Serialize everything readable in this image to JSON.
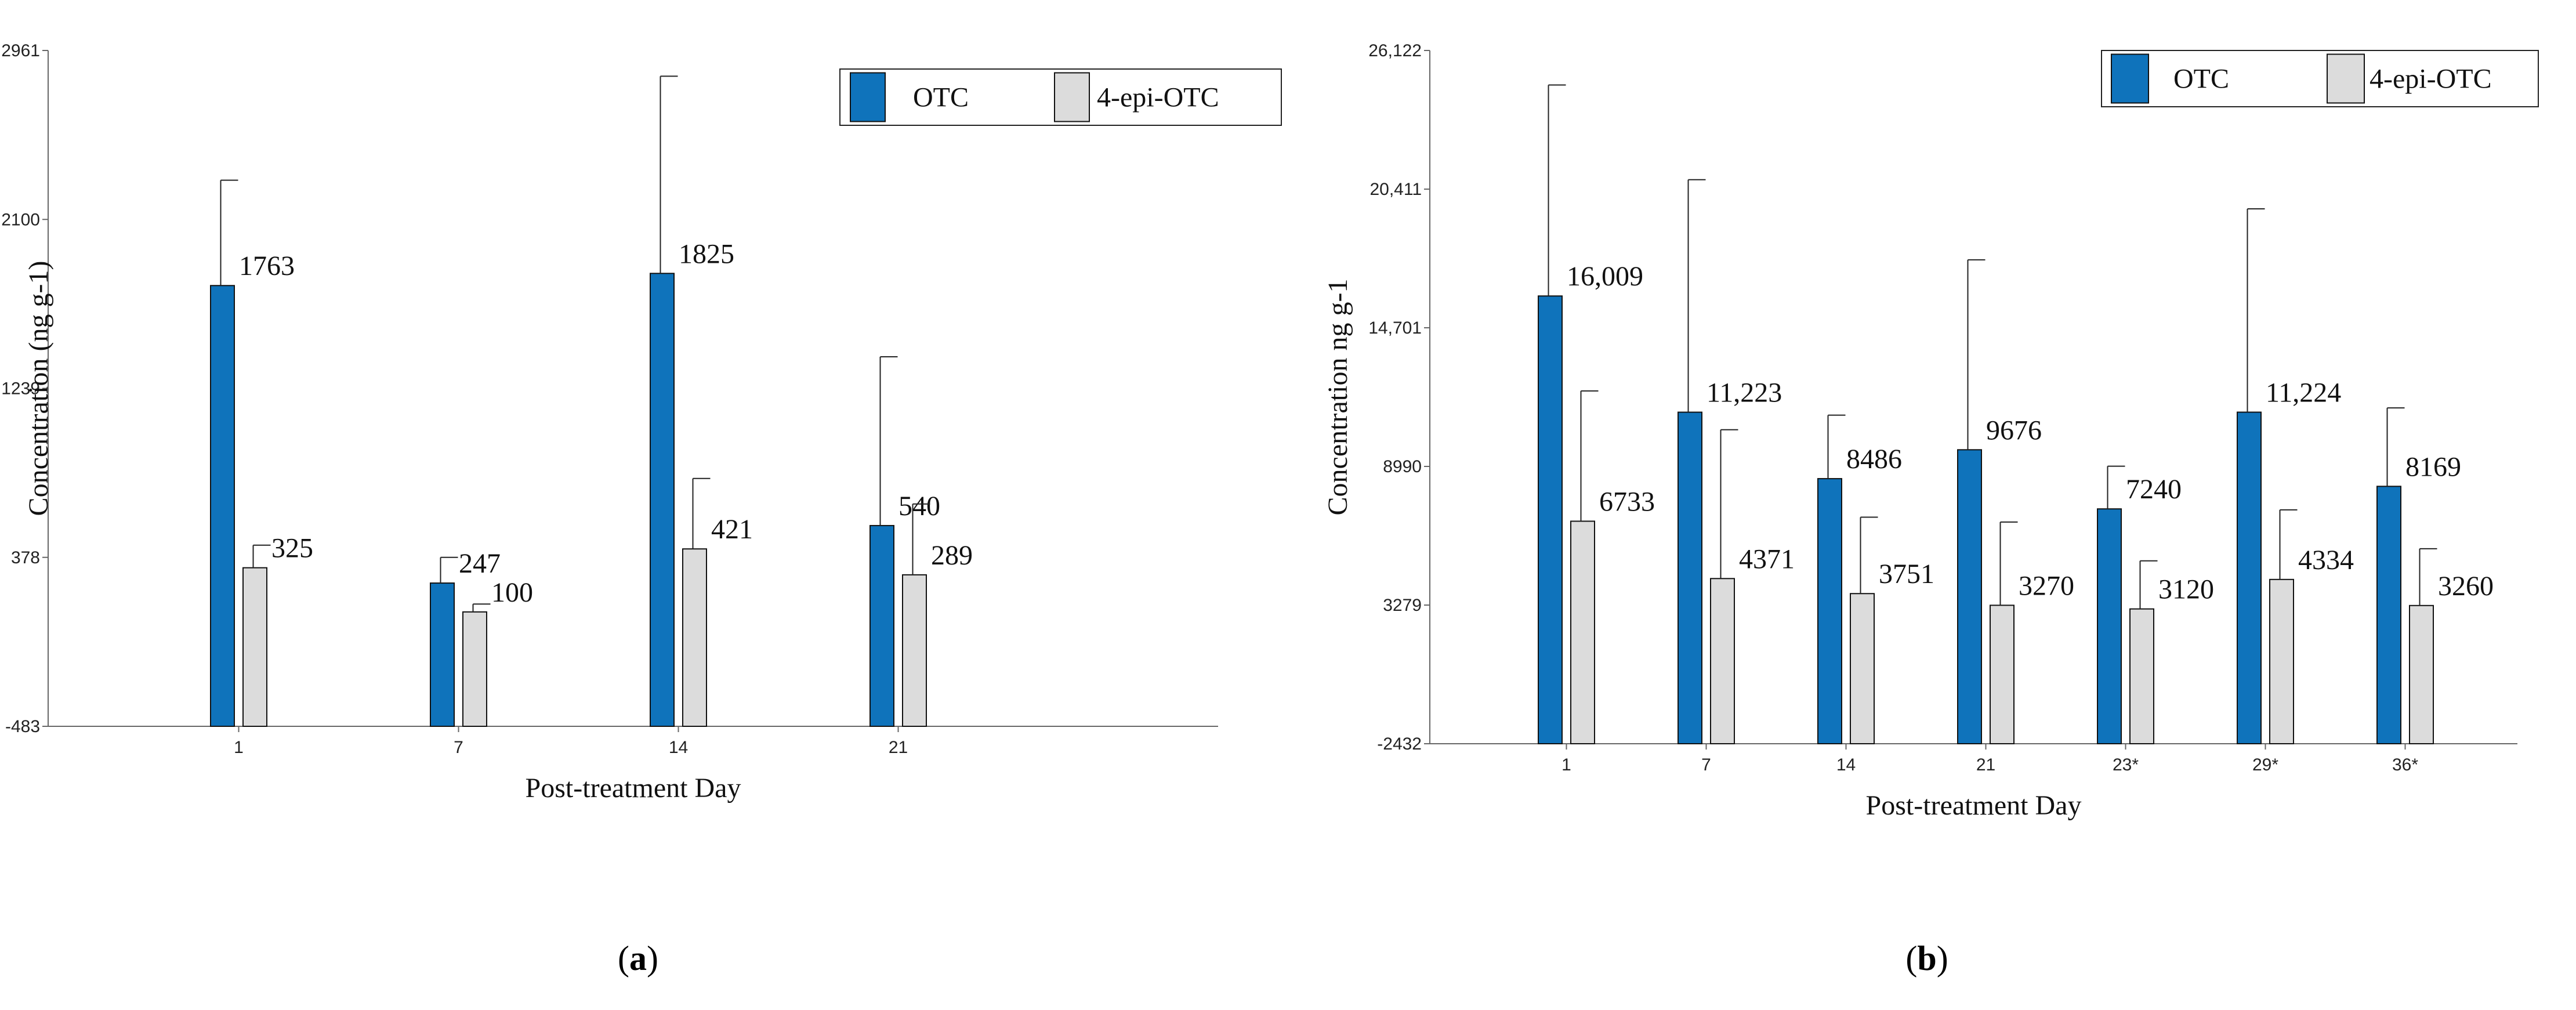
{
  "chart_data": [
    {
      "type": "bar",
      "panel_label": "a",
      "xlabel": "Post-treatment Day",
      "ylabel": "Concentration (ng g-1)",
      "ylim": [
        -483,
        2961
      ],
      "yticks": [
        "-483",
        "378",
        "1239",
        "2100",
        "2961"
      ],
      "categories": [
        "1",
        "7",
        "14",
        "21"
      ],
      "legend_position": "top-right",
      "series": [
        {
          "name": "OTC",
          "color": "#0f73bb",
          "values": [
            1763,
            247,
            1825,
            540
          ],
          "labels": [
            "1763",
            "247",
            "1825",
            "540"
          ],
          "error_upper": [
            2300,
            378,
            2830,
            1400
          ]
        },
        {
          "name": "4-epi-OTC",
          "color": "#dcdcdc",
          "values": [
            325,
            100,
            421,
            289
          ],
          "labels": [
            "325",
            "100",
            "421",
            "289"
          ],
          "error_upper": [
            440,
            140,
            780,
            650
          ]
        }
      ]
    },
    {
      "type": "bar",
      "panel_label": "b",
      "xlabel": "Post-treatment Day",
      "ylabel": "Concentration ng g-1",
      "ylim": [
        -2432,
        26122
      ],
      "yticks": [
        "-2432",
        "3279",
        "8990",
        "14,701",
        "20,411",
        "26,122"
      ],
      "categories": [
        "1",
        "7",
        "14",
        "21",
        "23*",
        "29*",
        "36*"
      ],
      "legend_position": "top-right",
      "series": [
        {
          "name": "OTC",
          "color": "#0f73bb",
          "values": [
            16009,
            11223,
            8486,
            9676,
            7240,
            11224,
            8169
          ],
          "labels": [
            "16,009",
            "11,223",
            "8486",
            "9676",
            "7240",
            "11,224",
            "8169"
          ],
          "error_upper": [
            24700,
            20800,
            11100,
            17500,
            9000,
            19600,
            11400
          ]
        },
        {
          "name": "4-epi-OTC",
          "color": "#dcdcdc",
          "values": [
            6733,
            4371,
            3751,
            3270,
            3120,
            4334,
            3260
          ],
          "labels": [
            "6733",
            "4371",
            "3751",
            "3270",
            "3120",
            "4334",
            "3260"
          ],
          "error_upper": [
            12100,
            10500,
            6900,
            6700,
            5100,
            7200,
            5600
          ]
        }
      ]
    }
  ],
  "captions": [
    "a",
    "b"
  ]
}
